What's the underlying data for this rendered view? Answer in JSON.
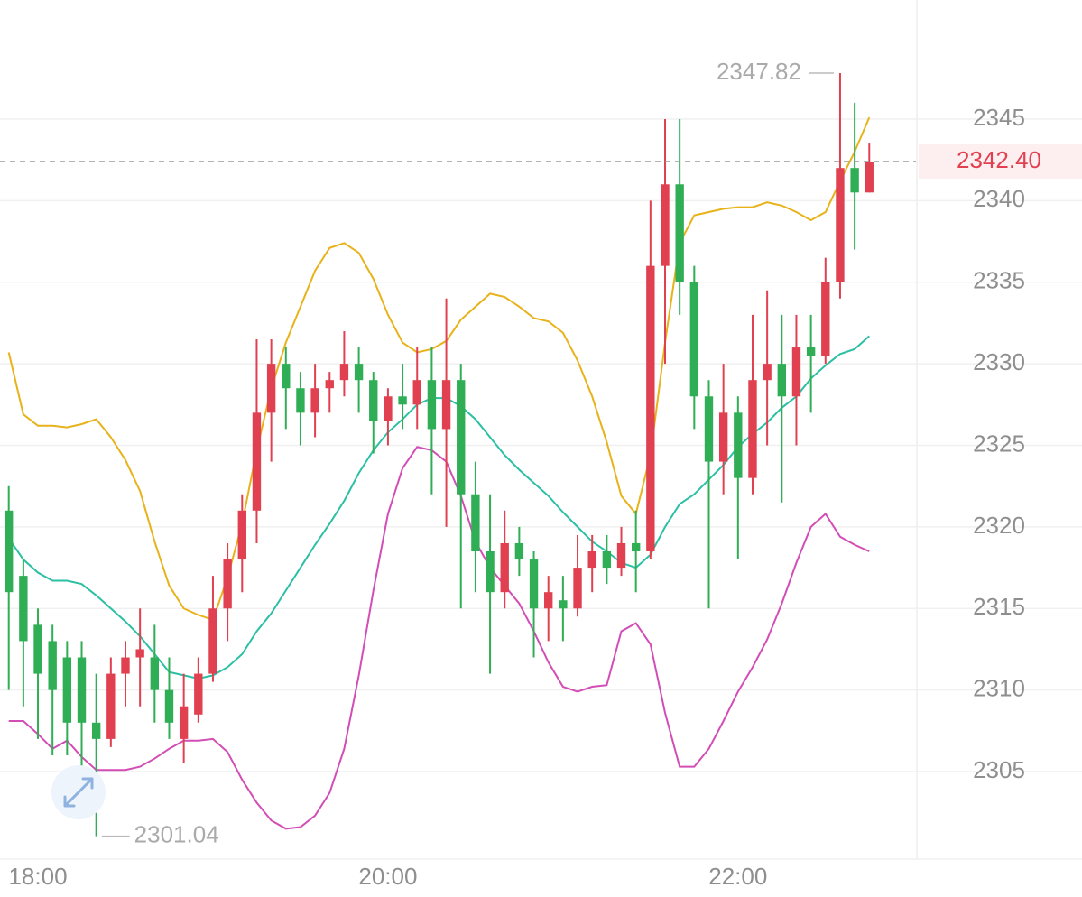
{
  "chart_data": {
    "type": "candlestick",
    "x": [
      1070,
      1075,
      1080,
      1085,
      1090,
      1095,
      1100,
      1105,
      1110,
      1115,
      1120,
      1125,
      1130,
      1135,
      1140,
      1145,
      1150,
      1155,
      1160,
      1165,
      1170,
      1175,
      1180,
      1185,
      1190,
      1195,
      1200,
      1205,
      1210,
      1215,
      1220,
      1225,
      1230,
      1235,
      1240,
      1245,
      1250,
      1255,
      1260,
      1265,
      1270,
      1275,
      1280,
      1285,
      1290,
      1295,
      1300,
      1305,
      1310,
      1315,
      1320,
      1325,
      1330,
      1335,
      1340,
      1345,
      1350,
      1355,
      1360,
      1365
    ],
    "open": [
      2321,
      2317,
      2314,
      2313,
      2312,
      2312,
      2308,
      2307,
      2311,
      2312,
      2312,
      2310,
      2307,
      2308.5,
      2311,
      2315,
      2318,
      2321,
      2327,
      2330,
      2328.5,
      2327,
      2328.5,
      2329,
      2330,
      2329,
      2326.5,
      2328,
      2327.5,
      2329,
      2326,
      2329,
      2322,
      2318.5,
      2316,
      2319,
      2318,
      2315,
      2315.5,
      2315,
      2317.5,
      2318.5,
      2317.5,
      2319,
      2318.5,
      2336,
      2341,
      2335,
      2328,
      2324,
      2327,
      2323,
      2329,
      2330,
      2328,
      2331,
      2330.5,
      2335,
      2342,
      2340.5
    ],
    "high": [
      2322.5,
      2318,
      2315,
      2314,
      2313,
      2313,
      2311,
      2312,
      2313,
      2315,
      2314,
      2312,
      2311,
      2312,
      2317,
      2319,
      2322,
      2331.5,
      2331.5,
      2331,
      2329.5,
      2330,
      2329.5,
      2332,
      2331,
      2329.5,
      2328.5,
      2330,
      2331,
      2331,
      2334,
      2330,
      2324,
      2322,
      2321,
      2320,
      2318.5,
      2317,
      2317,
      2319.5,
      2319.5,
      2319.5,
      2320,
      2321,
      2340,
      2345,
      2345,
      2336,
      2329,
      2330,
      2328,
      2333,
      2334.5,
      2333,
      2333,
      2333,
      2336.5,
      2347.82,
      2346,
      2343.5
    ],
    "low": [
      2310,
      2309,
      2307,
      2306,
      2306,
      2305,
      2301.04,
      2306.5,
      2309,
      2309,
      2308,
      2307,
      2305.5,
      2308,
      2310.5,
      2313,
      2316,
      2319,
      2324,
      2326,
      2325,
      2325.5,
      2327,
      2328,
      2327,
      2324.5,
      2325,
      2326,
      2326,
      2322,
      2320,
      2315,
      2316,
      2311,
      2315,
      2317,
      2312,
      2313,
      2313,
      2314.5,
      2316,
      2316.5,
      2317,
      2316,
      2318,
      2330,
      2333,
      2326,
      2315,
      2322,
      2318,
      2322,
      2325,
      2321.5,
      2325,
      2327,
      2330,
      2334,
      2337,
      2340.5
    ],
    "close": [
      2316,
      2313,
      2311,
      2310,
      2308,
      2308,
      2307,
      2311,
      2312,
      2312.5,
      2310,
      2308,
      2309,
      2311,
      2315,
      2318,
      2321,
      2327,
      2330,
      2328.5,
      2327,
      2328.5,
      2329,
      2330,
      2329,
      2326.5,
      2328,
      2327.5,
      2329,
      2326,
      2329,
      2322,
      2318.5,
      2316,
      2319,
      2318,
      2315,
      2316,
      2315,
      2317.5,
      2318.5,
      2317.5,
      2319,
      2318.5,
      2336,
      2341,
      2335,
      2328,
      2324,
      2327,
      2323,
      2329,
      2330,
      2328,
      2331,
      2330.5,
      2335,
      2342,
      2340.5,
      2342.4
    ],
    "up_color": "#e0404f",
    "down_color": "#2fae55",
    "series": [
      {
        "color": "#e8b21a",
        "values": [
          2330.7,
          2326.9,
          2326.2,
          2326.2,
          2326.1,
          2326.3,
          2326.6,
          2325.5,
          2324.1,
          2322.2,
          2319.1,
          2316.4,
          2315,
          2314.6,
          2314.3,
          2316.9,
          2320.2,
          2324.7,
          2328.5,
          2331.3,
          2333.5,
          2335.7,
          2337.1,
          2337.4,
          2336.8,
          2335.2,
          2333,
          2331.3,
          2330.7,
          2330.9,
          2331.4,
          2332.7,
          2333.5,
          2334.3,
          2334.1,
          2333.5,
          2332.8,
          2332.6,
          2331.9,
          2330.2,
          2328,
          2325.2,
          2321.9,
          2320.8,
          2324.4,
          2331.3,
          2337.4,
          2339.1,
          2339.3,
          2339.5,
          2339.6,
          2339.6,
          2339.9,
          2339.7,
          2339.3,
          2338.8,
          2339.3,
          2341.2,
          2343,
          2345.1
        ]
      },
      {
        "color": "#2bbfa4",
        "values": [
          2319.3,
          2318,
          2317.2,
          2316.7,
          2316.7,
          2316.5,
          2315.8,
          2315,
          2314.2,
          2313.3,
          2312.2,
          2311.1,
          2310.9,
          2310.7,
          2310.9,
          2311.4,
          2312.2,
          2313.6,
          2314.7,
          2316.1,
          2317.5,
          2318.9,
          2320.2,
          2321.6,
          2323.3,
          2324.7,
          2325.8,
          2326.6,
          2327.5,
          2327.9,
          2327.9,
          2327.4,
          2326.6,
          2325.5,
          2324.4,
          2323.5,
          2322.7,
          2321.9,
          2320.9,
          2320,
          2319.1,
          2318.5,
          2317.8,
          2317.5,
          2318.3,
          2320,
          2321.4,
          2322,
          2322.9,
          2323.8,
          2324.9,
          2325.7,
          2326.4,
          2327.3,
          2328,
          2329.1,
          2329.9,
          2330.6,
          2330.9,
          2331.7
        ]
      },
      {
        "color": "#d24db5",
        "values": [
          2308.1,
          2308.1,
          2307.3,
          2306.4,
          2306.9,
          2305.9,
          2305.1,
          2305.1,
          2305.1,
          2305.3,
          2305.8,
          2306.4,
          2306.9,
          2306.9,
          2307,
          2306.2,
          2304.5,
          2303.1,
          2302,
          2301.5,
          2301.6,
          2302.3,
          2303.7,
          2306.4,
          2310.9,
          2316.1,
          2320.8,
          2323.6,
          2324.9,
          2324.7,
          2324,
          2321.9,
          2319.1,
          2317.5,
          2316.4,
          2315.3,
          2313.6,
          2311.7,
          2310.2,
          2309.9,
          2310.2,
          2310.3,
          2313.6,
          2314.1,
          2312.8,
          2308.6,
          2305.3,
          2305.3,
          2306.4,
          2308.1,
          2309.9,
          2311.4,
          2313.1,
          2315.3,
          2317.8,
          2320,
          2320.8,
          2319.4,
          2318.9,
          2318.5
        ]
      }
    ],
    "xlim": [
      1067,
      1381
    ],
    "xticks": [
      {
        "value": 1080,
        "label": "18:00"
      },
      {
        "value": 1200,
        "label": "20:00"
      },
      {
        "value": 1320,
        "label": "22:00"
      }
    ],
    "ylim": [
      2300.3,
      2352.3
    ],
    "yticks": [
      2305,
      2310,
      2315,
      2320,
      2325,
      2330,
      2335,
      2340,
      2345
    ],
    "grid": true,
    "high_label": 2347.82,
    "low_label": 2301.04,
    "last_price": {
      "value": 2342.4,
      "label": "2342.40"
    }
  }
}
